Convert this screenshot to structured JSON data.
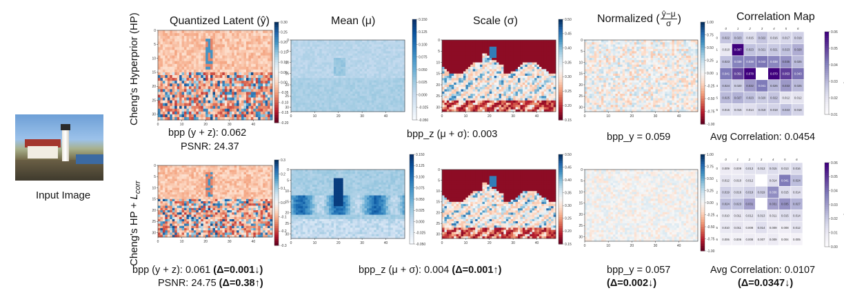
{
  "input_image": {
    "caption": "Input Image"
  },
  "column_titles": {
    "latent": "Quantized Latent (ŷ)",
    "mean": "Mean (μ)",
    "scale": "Scale (σ)",
    "normalized_prefix": "Normalized (",
    "normalized_numerator": "ŷ−μ",
    "normalized_denominator": "σ",
    "normalized_suffix": ")",
    "correlation": "Correlation Map"
  },
  "row_labels": {
    "top": "Cheng's Hyperprior (HP)",
    "bottom_prefix": "Cheng's HP + ",
    "bottom_math": "L",
    "bottom_sub": "corr"
  },
  "captions": {
    "top_bpp": "bpp (y + z): 0.062",
    "top_psnr": "PSNR: 24.37",
    "top_bppz": "bpp_z (μ + σ): 0.003",
    "top_bppy": "bpp_y = 0.059",
    "top_corr": "Avg Correlation: 0.0454",
    "bottom_bpp": "bpp (y + z): 0.061 ",
    "bottom_bpp_delta": "(Δ=0.001↓)",
    "bottom_psnr": "PSNR: 24.75 ",
    "bottom_psnr_delta": "(Δ=0.38↑)",
    "bottom_bppz": "bpp_z (μ + σ): 0.004 ",
    "bottom_bppz_delta": "(Δ=0.001↑)",
    "bottom_bppy": "bpp_y = 0.057",
    "bottom_bppy_delta": "(Δ=0.002↓)",
    "bottom_corr": "Avg Correlation: 0.0107",
    "bottom_corr_delta": "(Δ=0.0347↓)"
  },
  "chart_data": [
    {
      "type": "heatmap",
      "name": "latent-top",
      "x_ticks": [
        "0",
        "10",
        "20",
        "30",
        "40"
      ],
      "y_ticks": [
        "0",
        "5",
        "10",
        "15",
        "20",
        "25",
        "30"
      ],
      "colorbar_ticks": [
        "0.30",
        "0.25",
        "0.20",
        "0.15",
        "0.10",
        "0.05",
        "0.00",
        "-0.05",
        "-0.10",
        "-0.15",
        "-0.20"
      ],
      "colormap": "RdBu"
    },
    {
      "type": "heatmap",
      "name": "mean-top",
      "x_ticks": [
        "0",
        "10",
        "20",
        "30",
        "40"
      ],
      "y_ticks": [
        "0",
        "5",
        "10",
        "15",
        "20",
        "25",
        "30"
      ],
      "colorbar_ticks": [
        "0.150",
        "0.125",
        "0.100",
        "0.075",
        "0.050",
        "0.025",
        "0.000",
        "-0.025",
        "-0.050"
      ],
      "colormap": "Blues"
    },
    {
      "type": "heatmap",
      "name": "scale-top",
      "x_ticks": [
        "0",
        "10",
        "20",
        "30",
        "40"
      ],
      "y_ticks": [
        "0",
        "5",
        "10",
        "15",
        "20",
        "25",
        "30"
      ],
      "colorbar_ticks": [
        "0.50",
        "0.45",
        "0.40",
        "0.35",
        "0.30",
        "0.25",
        "0.20",
        "0.15"
      ],
      "colormap": "RdBu"
    },
    {
      "type": "heatmap",
      "name": "normalized-top",
      "x_ticks": [
        "0",
        "10",
        "20",
        "30",
        "40"
      ],
      "y_ticks": [
        "0",
        "5",
        "10",
        "15",
        "20",
        "25",
        "30"
      ],
      "colorbar_ticks": [
        "1.00",
        "0.75",
        "0.50",
        "0.25",
        "0.00",
        "-0.25",
        "-0.50",
        "-0.75",
        "-1.00"
      ],
      "colormap": "RdBu"
    },
    {
      "type": "heatmap",
      "name": "correlation-top",
      "x_ticks": [
        "0",
        "1",
        "2",
        "3",
        "4",
        "5",
        "6"
      ],
      "y_ticks": [
        "0",
        "1",
        "2",
        "3",
        "4",
        "5",
        "6"
      ],
      "colorbar_label": "Correlation Map",
      "colorbar_ticks": [
        "0.06",
        "0.05",
        "0.04",
        "0.03",
        "0.02",
        "0.01"
      ],
      "values": [
        [
          0.022,
          0.023,
          0.015,
          0.022,
          0.016,
          0.017,
          0.019
        ],
        [
          0.01,
          0.097,
          0.023,
          0.021,
          0.021,
          0.023,
          0.028
        ],
        [
          0.023,
          0.039,
          0.038,
          0.042,
          0.038,
          0.035,
          0.025
        ],
        [
          0.041,
          0.051,
          0.078,
          0.0,
          0.07,
          0.053,
          0.043
        ],
        [
          0.024,
          0.02,
          0.032,
          0.041,
          0.026,
          0.033,
          0.025
        ],
        [
          0.025,
          0.027,
          0.023,
          0.02,
          0.022,
          0.012,
          0.012
        ],
        [
          0.015,
          0.015,
          0.014,
          0.018,
          0.018,
          0.023,
          0.018
        ]
      ],
      "colormap": "Purples"
    },
    {
      "type": "heatmap",
      "name": "latent-bottom",
      "x_ticks": [
        "0",
        "10",
        "20",
        "30",
        "40"
      ],
      "y_ticks": [
        "0",
        "5",
        "10",
        "15",
        "20",
        "25",
        "30"
      ],
      "colorbar_ticks": [
        "0.3",
        "0.2",
        "0.1",
        "0.0",
        "-0.1",
        "-0.2",
        "-0.3"
      ],
      "colormap": "RdBu"
    },
    {
      "type": "heatmap",
      "name": "mean-bottom",
      "x_ticks": [
        "0",
        "10",
        "20",
        "30",
        "40"
      ],
      "y_ticks": [
        "0",
        "5",
        "10",
        "15",
        "20",
        "25",
        "30"
      ],
      "colorbar_ticks": [
        "0.150",
        "0.125",
        "0.100",
        "0.075",
        "0.050",
        "0.025",
        "0.000",
        "-0.025",
        "-0.050"
      ],
      "colormap": "Blues"
    },
    {
      "type": "heatmap",
      "name": "scale-bottom",
      "x_ticks": [
        "0",
        "10",
        "20",
        "30",
        "40"
      ],
      "y_ticks": [
        "0",
        "5",
        "10",
        "15",
        "20",
        "25",
        "30"
      ],
      "colorbar_ticks": [
        "0.50",
        "0.45",
        "0.40",
        "0.35",
        "0.30",
        "0.25",
        "0.20",
        "0.15"
      ],
      "colormap": "RdBu"
    },
    {
      "type": "heatmap",
      "name": "normalized-bottom",
      "x_ticks": [
        "0",
        "10",
        "20",
        "30",
        "40"
      ],
      "y_ticks": [
        "0",
        "5",
        "10",
        "15",
        "20",
        "25",
        "30"
      ],
      "colorbar_ticks": [
        "1.00",
        "0.75",
        "0.50",
        "0.25",
        "0.00",
        "-0.25",
        "-0.50",
        "-0.75",
        "-1.00"
      ],
      "colormap": "RdBu"
    },
    {
      "type": "heatmap",
      "name": "correlation-bottom",
      "x_ticks": [
        "0",
        "1",
        "2",
        "3",
        "4",
        "5",
        "6"
      ],
      "y_ticks": [
        "0",
        "1",
        "2",
        "3",
        "4",
        "5",
        "6"
      ],
      "colorbar_label": "Correlation Map",
      "colorbar_ticks": [
        "0.06",
        "0.05",
        "0.04",
        "0.03",
        "0.02",
        "0.01",
        "0.00"
      ],
      "values": [
        [
          0.009,
          0.009,
          0.013,
          0.013,
          0.015,
          0.013,
          0.016
        ],
        [
          0.012,
          0.01,
          0.012,
          0.0,
          0.014,
          0.041,
          0.024
        ],
        [
          0.019,
          0.016,
          0.019,
          0.019,
          0.036,
          0.015,
          0.014
        ],
        [
          0.024,
          0.023,
          0.031,
          0.0,
          0.031,
          0.035,
          0.027
        ],
        [
          0.01,
          0.011,
          0.012,
          0.013,
          0.011,
          0.015,
          0.014
        ],
        [
          0.01,
          0.011,
          0.008,
          0.014,
          0.009,
          0.008,
          0.012
        ],
        [
          0.006,
          0.006,
          0.008,
          0.007,
          0.009,
          0.004,
          0.005
        ]
      ],
      "colormap": "Purples"
    }
  ]
}
